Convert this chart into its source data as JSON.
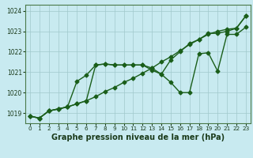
{
  "bg_color": "#c8eaf0",
  "grid_color": "#a0c8cc",
  "line_color": "#1a5e1a",
  "marker": "D",
  "markersize": 2.5,
  "linewidth": 1.0,
  "title": "Graphe pression niveau de la mer (hPa)",
  "title_fontsize": 7.0,
  "xlim": [
    -0.5,
    23.5
  ],
  "ylim": [
    1018.5,
    1024.3
  ],
  "yticks": [
    1019,
    1020,
    1021,
    1022,
    1023,
    1024
  ],
  "xticks": [
    0,
    1,
    2,
    3,
    4,
    5,
    6,
    7,
    8,
    9,
    10,
    11,
    12,
    13,
    14,
    15,
    16,
    17,
    18,
    19,
    20,
    21,
    22,
    23
  ],
  "series": [
    [
      1018.85,
      1018.75,
      1019.1,
      1019.2,
      1019.3,
      1019.45,
      1019.6,
      1019.8,
      1020.05,
      1020.25,
      1020.5,
      1020.7,
      1020.95,
      1021.2,
      1021.5,
      1021.75,
      1022.05,
      1022.35,
      1022.6,
      1022.85,
      1023.0,
      1023.1,
      1023.15,
      1023.75
    ],
    [
      1018.85,
      1018.75,
      1019.1,
      1019.2,
      1019.3,
      1019.45,
      1019.6,
      1021.35,
      1021.4,
      1021.35,
      1021.35,
      1021.35,
      1021.35,
      1021.2,
      1020.9,
      1021.6,
      1022.0,
      1022.4,
      1022.6,
      1022.9,
      1022.9,
      1023.0,
      1023.15,
      1023.75
    ],
    [
      1018.85,
      1018.75,
      1019.1,
      1019.2,
      1019.3,
      1020.55,
      1020.85,
      1021.35,
      1021.4,
      1021.35,
      1021.35,
      1021.35,
      1021.35,
      1021.1,
      1020.9,
      1020.5,
      1020.0,
      1020.0,
      1021.9,
      1021.95,
      1021.05,
      1022.85,
      1022.85,
      1023.2
    ]
  ]
}
